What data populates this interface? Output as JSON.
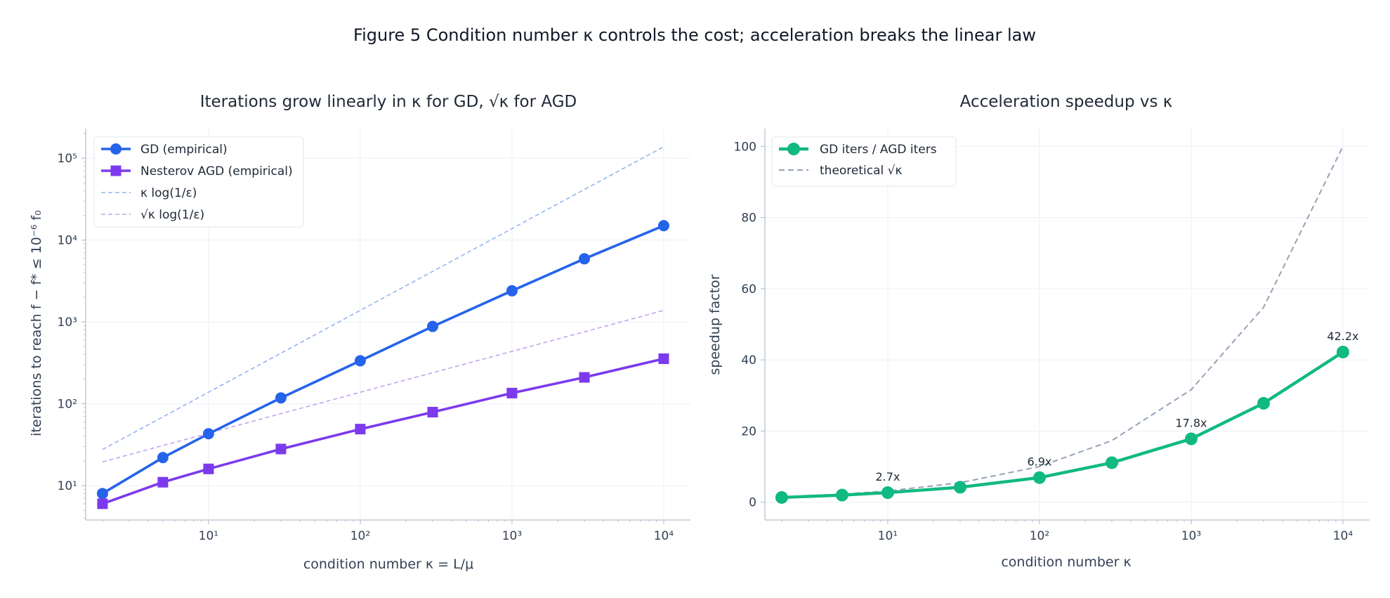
{
  "figure_title": "Figure 5  Condition number κ controls the cost; acceleration breaks the linear law",
  "chart_data": [
    {
      "type": "line",
      "title": "Iterations grow linearly in κ for GD, √κ for AGD",
      "xlabel": "condition number κ = L/μ",
      "ylabel": "iterations to reach f − f* ≤ 10⁻⁶ f₀",
      "xscale": "log",
      "yscale": "log",
      "xlim": [
        1.55,
        15000
      ],
      "ylim": [
        3.8,
        230000
      ],
      "grid": true,
      "legend_position": "top-left",
      "x": [
        2,
        5,
        10,
        30,
        100,
        300,
        1000,
        3000,
        10000
      ],
      "x_tick_labels": [
        "10¹",
        "10²",
        "10³",
        "10⁴"
      ],
      "y_tick_labels": [
        "10¹",
        "10²",
        "10³",
        "10⁴",
        "10⁵"
      ],
      "series": [
        {
          "name": "GD (empirical)",
          "color": "#2563eb",
          "marker": "circle",
          "style": "solid",
          "values": [
            8,
            22,
            43,
            118,
            335,
            880,
            2400,
            5900,
            15000
          ]
        },
        {
          "name": "Nesterov AGD (empirical)",
          "color": "#7c3aed",
          "marker": "square",
          "style": "solid",
          "values": [
            6,
            11,
            16,
            28,
            49,
            79,
            135,
            210,
            355
          ]
        },
        {
          "name": "κ log(1/ε)",
          "color": "#93b4ee",
          "marker": "none",
          "style": "dashed",
          "values": [
            27.6,
            69.1,
            138.2,
            414.5,
            1381.6,
            4144.7,
            13815.5,
            41446.5,
            138155
          ]
        },
        {
          "name": "√κ log(1/ε)",
          "color": "#c4a3ef",
          "marker": "none",
          "style": "dashed",
          "values": [
            19.5,
            30.9,
            43.7,
            75.7,
            138.2,
            239.3,
            436.9,
            756.8,
            1381.6
          ]
        }
      ]
    },
    {
      "type": "line",
      "title": "Acceleration speedup vs κ",
      "xlabel": "condition number κ",
      "ylabel": "speedup factor",
      "xscale": "log",
      "yscale": "linear",
      "xlim": [
        1.55,
        15000
      ],
      "ylim": [
        -5,
        105
      ],
      "grid": true,
      "legend_position": "top-left",
      "x": [
        2,
        5,
        10,
        30,
        100,
        300,
        1000,
        3000,
        10000
      ],
      "x_tick_labels": [
        "10¹",
        "10²",
        "10³",
        "10⁴"
      ],
      "y_ticks": [
        0,
        20,
        40,
        60,
        80,
        100
      ],
      "series": [
        {
          "name": "GD iters / AGD iters",
          "color": "#10b981",
          "marker": "circle",
          "style": "solid",
          "values": [
            1.33,
            2.0,
            2.7,
            4.2,
            6.9,
            11.1,
            17.8,
            27.8,
            42.2
          ]
        },
        {
          "name": "theoretical √κ",
          "color": "#94a3b8",
          "marker": "none",
          "style": "dashed",
          "values": [
            1.41,
            2.24,
            3.16,
            5.48,
            10.0,
            17.32,
            31.62,
            54.77,
            100.0
          ]
        }
      ],
      "annotations": [
        {
          "x": 10,
          "y": 2.7,
          "text": "2.7x"
        },
        {
          "x": 100,
          "y": 6.9,
          "text": "6.9x"
        },
        {
          "x": 1000,
          "y": 17.8,
          "text": "17.8x"
        },
        {
          "x": 10000,
          "y": 42.2,
          "text": "42.2x"
        }
      ]
    }
  ]
}
